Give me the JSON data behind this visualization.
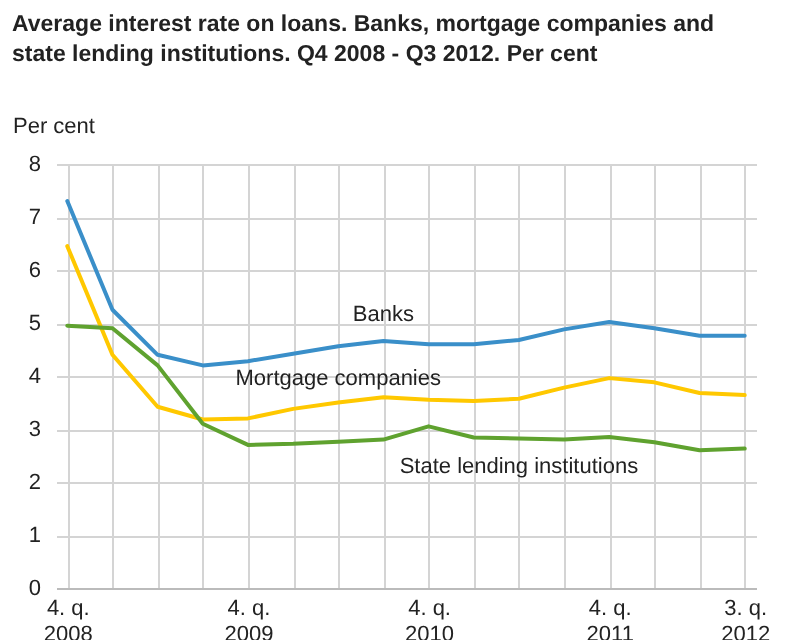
{
  "chart_data": {
    "type": "line",
    "title": "Average interest rate on loans. Banks, mortgage companies and state lending institutions. Q4 2008 - Q3 2012. Per cent",
    "ylabel": "Per cent",
    "categories": [
      "4. q. 2008",
      null,
      null,
      null,
      "4. q. 2009",
      null,
      null,
      null,
      "4. q. 2010",
      null,
      null,
      null,
      "4. q. 2011",
      null,
      null,
      "3. q. 2012"
    ],
    "ylim": [
      0,
      8
    ],
    "yticks": [
      0,
      1,
      2,
      3,
      4,
      5,
      6,
      7,
      8
    ],
    "grid": true,
    "legend": false,
    "marker": "none",
    "line_style": "solid",
    "series": [
      {
        "name": "Banks",
        "color": "#3a8fc9",
        "values": [
          7.3,
          5.25,
          4.4,
          4.2,
          4.28,
          4.42,
          4.56,
          4.66,
          4.6,
          4.6,
          4.68,
          4.88,
          5.02,
          4.9,
          4.76,
          4.76
        ]
      },
      {
        "name": "Mortgage companies",
        "color": "#ffc800",
        "values": [
          6.45,
          4.4,
          3.42,
          3.18,
          3.2,
          3.38,
          3.5,
          3.6,
          3.55,
          3.53,
          3.57,
          3.78,
          3.96,
          3.88,
          3.68,
          3.64
        ]
      },
      {
        "name": "State lending institutions",
        "color": "#5fa22f",
        "values": [
          4.95,
          4.9,
          4.2,
          3.1,
          2.7,
          2.72,
          2.76,
          2.8,
          3.05,
          2.84,
          2.82,
          2.8,
          2.85,
          2.75,
          2.6,
          2.63
        ]
      }
    ]
  }
}
